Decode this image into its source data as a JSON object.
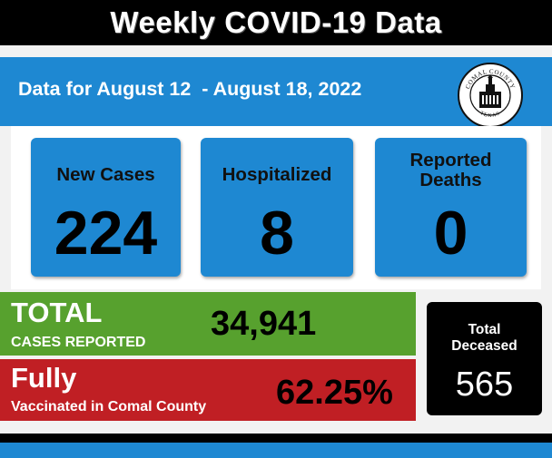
{
  "header": {
    "title": "Weekly COVID-19 Data"
  },
  "date_bar": {
    "text": "Data for August 12  - August 18, 2022"
  },
  "seal": {
    "top_text": "COMAL COUNTY",
    "bottom_text": "TEXAS"
  },
  "cards": [
    {
      "label": "New Cases",
      "value": "224"
    },
    {
      "label": "Hospitalized",
      "value": "8"
    },
    {
      "label_line1": "Reported",
      "label_line2": "Deaths",
      "value": "0"
    }
  ],
  "total_cases": {
    "title": "TOTAL",
    "subtitle": "CASES REPORTED",
    "value": "34,941"
  },
  "vaccinated": {
    "title": "Fully",
    "subtitle": "Vaccinated in Comal County",
    "value": "62.25%"
  },
  "deceased": {
    "label_line1": "Total",
    "label_line2": "Deceased",
    "value": "565"
  },
  "colors": {
    "blue": "#1e88d2",
    "green": "#57a12e",
    "red": "#c01f24",
    "black": "#000000"
  }
}
